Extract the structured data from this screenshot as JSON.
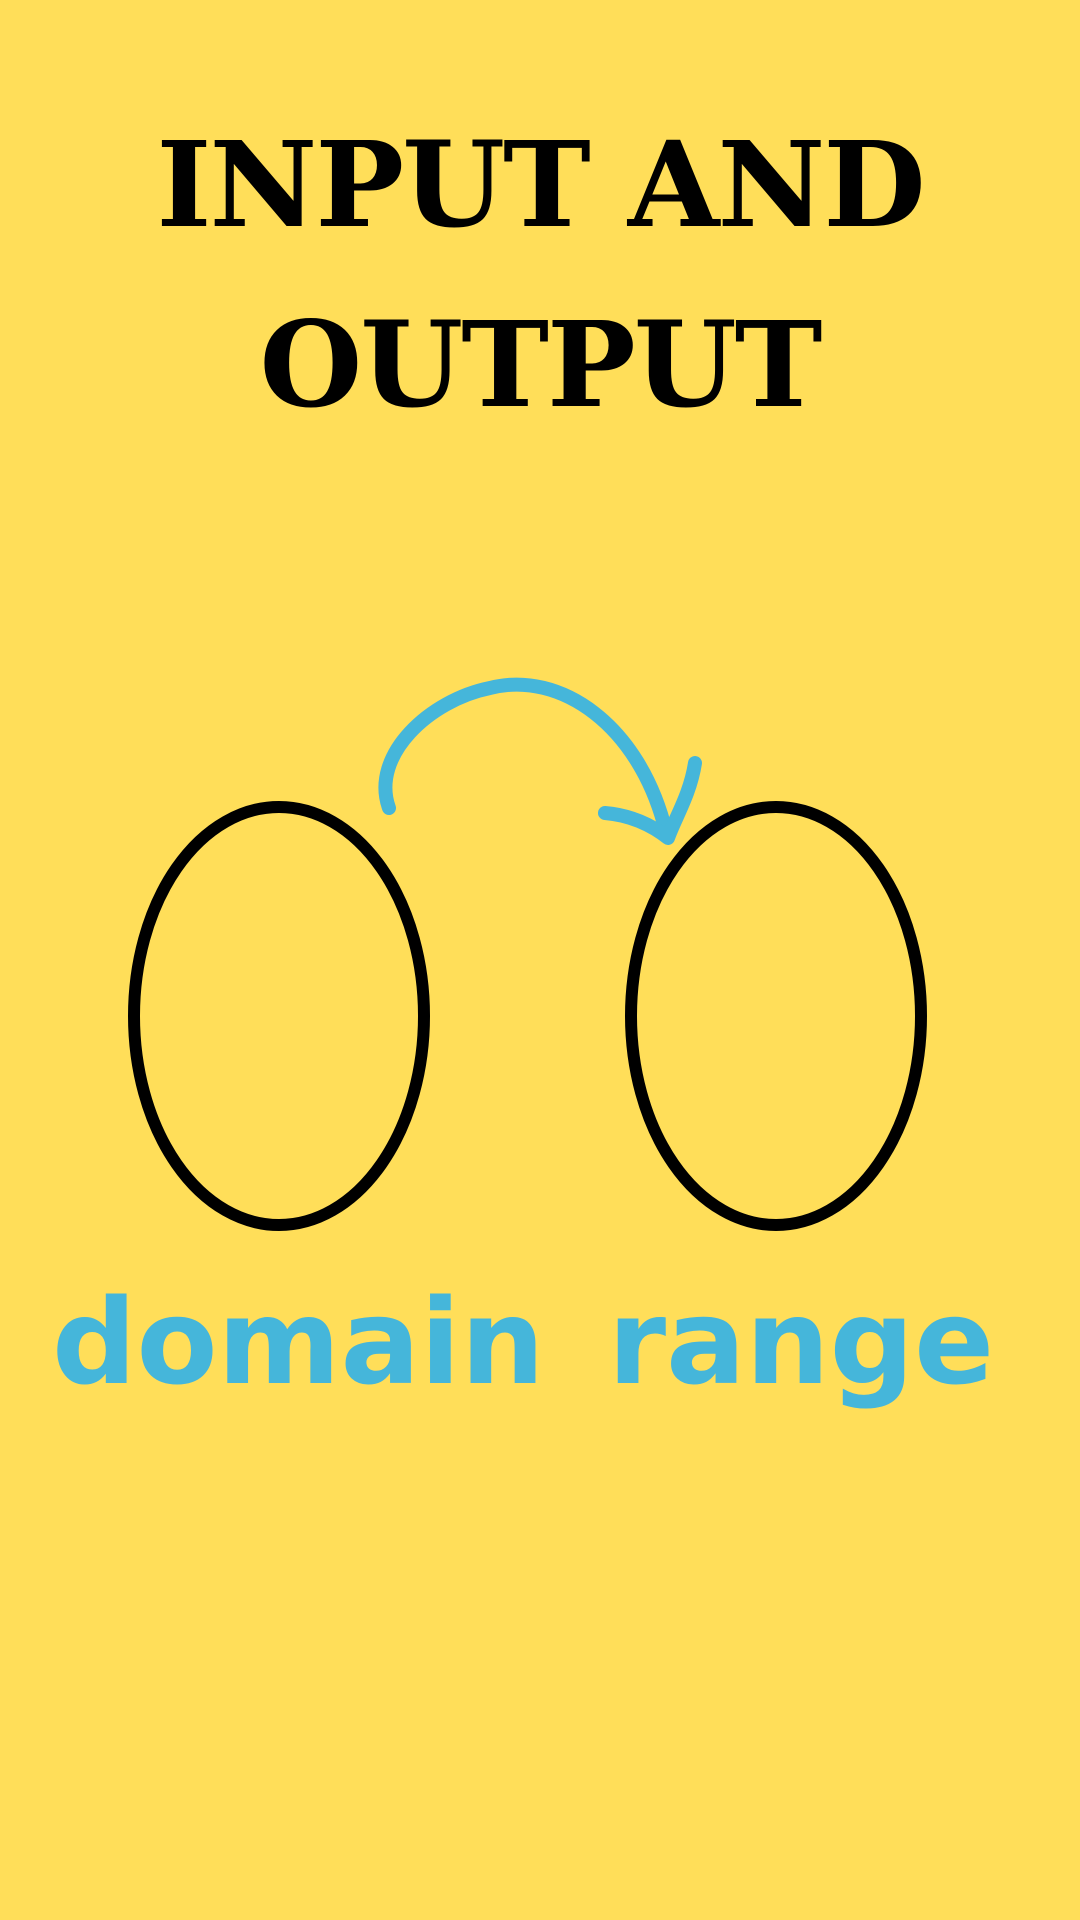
{
  "title": {
    "line1": "INPUT AND",
    "line2": "OUTPUT"
  },
  "sets": {
    "domain_label": "domain",
    "range_label": "range"
  },
  "colors": {
    "background": "#FFDE59",
    "title": "#000000",
    "set_outline": "#000000",
    "accent": "#45B6DA"
  },
  "icons": {
    "mapping_arrow": "curved-arrow-icon"
  }
}
